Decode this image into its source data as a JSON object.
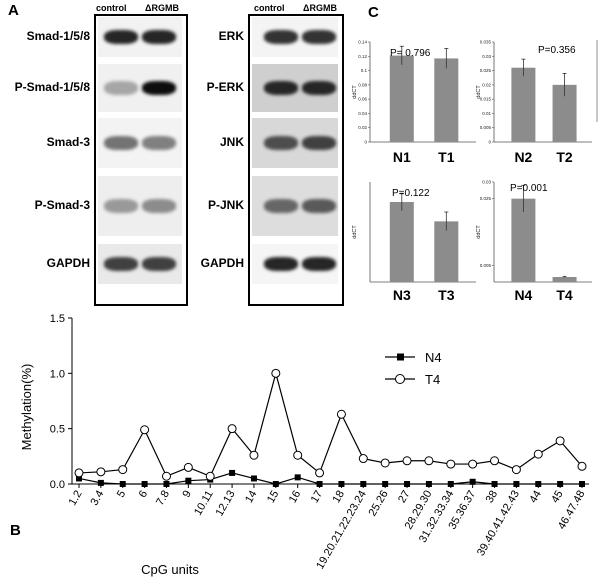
{
  "panel_labels": {
    "a": "A",
    "b": "B",
    "c": "C"
  },
  "blot_left": {
    "headers": [
      "control",
      "ΔRGMB"
    ],
    "rows": [
      {
        "label": "Smad-1/5/8",
        "bg": "#f2f2f2",
        "i1": 0.85,
        "i2": 0.85
      },
      {
        "label": "P-Smad-1/5/8",
        "bg": "#f0f0f0",
        "i1": 0.35,
        "i2": 0.95
      },
      {
        "label": "Smad-3",
        "bg": "#f3f3f3",
        "i1": 0.55,
        "i2": 0.5
      },
      {
        "label": "P-Smad-3",
        "bg": "#eeeeee",
        "i1": 0.4,
        "i2": 0.45
      },
      {
        "label": "GAPDH",
        "bg": "#e9e9e9",
        "i1": 0.75,
        "i2": 0.75
      }
    ]
  },
  "blot_right": {
    "headers": [
      "control",
      "ΔRGMB"
    ],
    "rows": [
      {
        "label": "ERK",
        "bg": "#f4f4f4",
        "i1": 0.8,
        "i2": 0.8
      },
      {
        "label": "P-ERK",
        "bg": "#cfcfcf",
        "i1": 0.85,
        "i2": 0.85
      },
      {
        "label": "JNK",
        "bg": "#d8d8d8",
        "i1": 0.7,
        "i2": 0.75
      },
      {
        "label": "P-JNK",
        "bg": "#dddddd",
        "i1": 0.6,
        "i2": 0.65
      },
      {
        "label": "GAPDH",
        "bg": "#f5f5f5",
        "i1": 0.85,
        "i2": 0.85
      }
    ]
  },
  "chart_data": [
    {
      "type": "bar",
      "id": "C-N1T1",
      "categories": [
        "N1",
        "T1"
      ],
      "values": [
        0.121,
        0.117
      ],
      "errors": [
        0.013,
        0.014
      ],
      "ylabel": "ddCT",
      "ylim": [
        0,
        0.14
      ],
      "yticks": [
        "0",
        "0.02",
        "0.04",
        "0.06",
        "0.08",
        "0.1",
        "0.12",
        "0.14"
      ],
      "annotation": "P= 0.796",
      "bar_color": "#8c8c8c"
    },
    {
      "type": "bar",
      "id": "C-N2T2",
      "categories": [
        "N2",
        "T2"
      ],
      "values": [
        0.026,
        0.02
      ],
      "errors": [
        0.003,
        0.004
      ],
      "ylabel": "ddCT",
      "ylim": [
        0,
        0.035
      ],
      "yticks": [
        "0",
        "0.005",
        "0.01",
        "0.015",
        "0.02",
        "0.025",
        "0.03",
        "0.035"
      ],
      "annotation": "P=0.356",
      "bar_color": "#8c8c8c"
    },
    {
      "type": "bar",
      "id": "C-N3T3",
      "categories": [
        "N3",
        "T3"
      ],
      "values": [
        0.128,
        0.097
      ],
      "errors": [
        0.014,
        0.015
      ],
      "ylabel": "ddCT",
      "ylim": [
        0,
        0.16
      ],
      "yticks": [],
      "annotation": "P=0.122",
      "bar_color": "#8c8c8c"
    },
    {
      "type": "bar",
      "id": "C-N4T4",
      "categories": [
        "N4",
        "T4"
      ],
      "values": [
        0.025,
        0.0015
      ],
      "errors": [
        0.004,
        0.0002
      ],
      "ylabel": "ddCT",
      "ylim": [
        0,
        0.03
      ],
      "yticks": [
        "0.03",
        "0.025",
        "0.005"
      ],
      "annotation": "P=0.001",
      "bar_color": "#8c8c8c"
    },
    {
      "type": "line",
      "id": "B-methylation",
      "categories": [
        "1.2",
        "3.4",
        "5",
        "6",
        "7.8",
        "9",
        "10.11",
        "12.13",
        "14",
        "15",
        "16",
        "17",
        "18",
        "19.20.21.22.23.24",
        "25.26",
        "27",
        "28.29.30",
        "31.32.33.34",
        "35.36.37",
        "38",
        "39.40.41.42.43",
        "44",
        "45",
        "46.47.48"
      ],
      "series": [
        {
          "name": "N4",
          "marker": "filled-square",
          "values": [
            0.05,
            0.01,
            0.0,
            0.0,
            0.0,
            0.03,
            0.04,
            0.1,
            0.05,
            0.0,
            0.06,
            0.0,
            0.0,
            0.0,
            0.0,
            0.0,
            0.0,
            0.0,
            0.02,
            0.0,
            0.0,
            0.0,
            0.0,
            0.0
          ]
        },
        {
          "name": "T4",
          "marker": "open-circle",
          "values": [
            0.1,
            0.11,
            0.13,
            0.49,
            0.07,
            0.15,
            0.07,
            0.5,
            0.26,
            1.0,
            0.26,
            0.1,
            0.63,
            0.23,
            0.19,
            0.21,
            0.21,
            0.18,
            0.18,
            0.21,
            0.13,
            0.27,
            0.39,
            0.16
          ]
        }
      ],
      "xlabel": "CpG units",
      "ylabel": "Methylation(%)",
      "ylim": [
        0,
        1.5
      ],
      "yticks": [
        "0.0",
        "0.5",
        "1.0",
        "1.5"
      ],
      "legend": "top-right"
    }
  ]
}
